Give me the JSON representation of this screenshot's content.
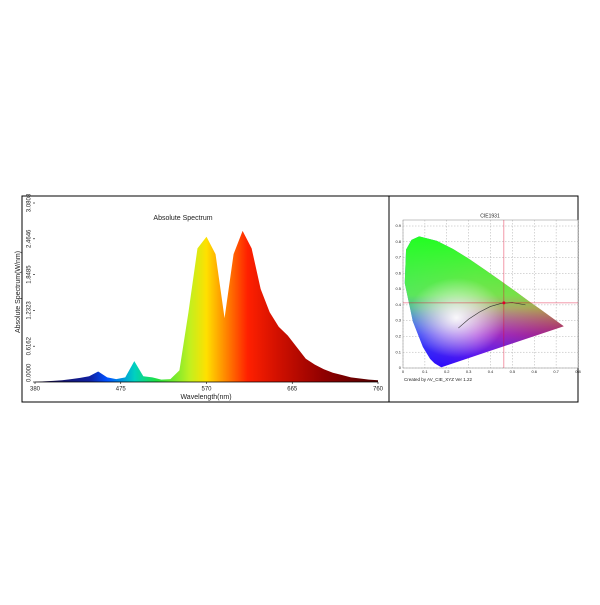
{
  "chart_data": [
    {
      "type": "area",
      "title": "Absolute Spectrum",
      "x_label": "Wavelength(nm)",
      "y_label": "Absolute Spectrum(W/nm)",
      "x": [
        380,
        390,
        400,
        410,
        420,
        430,
        440,
        450,
        460,
        470,
        480,
        490,
        500,
        510,
        520,
        530,
        540,
        550,
        560,
        570,
        580,
        590,
        600,
        610,
        620,
        630,
        640,
        650,
        660,
        670,
        680,
        690,
        700,
        710,
        720,
        730,
        740,
        750,
        760
      ],
      "values": [
        0,
        0.01,
        0.02,
        0.03,
        0.05,
        0.07,
        0.1,
        0.18,
        0.08,
        0.05,
        0.08,
        0.36,
        0.1,
        0.08,
        0.04,
        0.05,
        0.2,
        1.2,
        2.3,
        2.5,
        2.2,
        1.1,
        2.2,
        2.6,
        2.3,
        1.6,
        1.2,
        0.95,
        0.8,
        0.6,
        0.4,
        0.3,
        0.22,
        0.16,
        0.12,
        0.08,
        0.06,
        0.04,
        0.03
      ],
      "xlim": [
        380,
        760
      ],
      "xticks": [
        380,
        475,
        570,
        665,
        760
      ],
      "ylim": [
        0,
        3.0808
      ],
      "yticks": [
        {
          "value": 0,
          "label": "0.0000"
        },
        {
          "value": 0.6162,
          "label": "0.6162"
        },
        {
          "value": 1.2323,
          "label": "1.2323"
        },
        {
          "value": 1.8485,
          "label": "1.8485"
        },
        {
          "value": 2.4646,
          "label": "2.4646"
        },
        {
          "value": 3.0808,
          "label": "3.0808"
        }
      ],
      "grid": false
    },
    {
      "type": "scatter",
      "title": "CIE1931",
      "annotation": "Created by AV_CIE_XYZ Ver 1.22",
      "x": [
        0.4612
      ],
      "values": [
        0.4126
      ],
      "color": "#e0002a",
      "xlim": [
        0,
        0.8
      ],
      "xticks": [
        0,
        0.1,
        0.2,
        0.3,
        0.4,
        0.5,
        0.6,
        0.7,
        0.8
      ],
      "ylim": [
        0,
        0.9
      ],
      "yticks": [
        0,
        0.1,
        0.2,
        0.3,
        0.4,
        0.5,
        0.6,
        0.7,
        0.8,
        0.9
      ],
      "grid": true
    }
  ]
}
